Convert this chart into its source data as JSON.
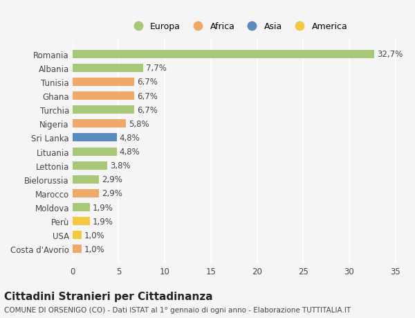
{
  "countries": [
    "Costa d'Avorio",
    "USA",
    "Perù",
    "Moldova",
    "Marocco",
    "Bielorussia",
    "Lettonia",
    "Lituania",
    "Sri Lanka",
    "Nigeria",
    "Turchia",
    "Ghana",
    "Tunisia",
    "Albania",
    "Romania"
  ],
  "values": [
    1.0,
    1.0,
    1.9,
    1.9,
    2.9,
    2.9,
    3.8,
    4.8,
    4.8,
    5.8,
    6.7,
    6.7,
    6.7,
    7.7,
    32.7
  ],
  "labels": [
    "1,0%",
    "1,0%",
    "1,9%",
    "1,9%",
    "2,9%",
    "2,9%",
    "3,8%",
    "4,8%",
    "4,8%",
    "5,8%",
    "6,7%",
    "6,7%",
    "6,7%",
    "7,7%",
    "32,7%"
  ],
  "colors": [
    "#f0a868",
    "#f5c842",
    "#f5c842",
    "#a8c878",
    "#f0a868",
    "#a8c878",
    "#a8c878",
    "#a8c878",
    "#5b8abf",
    "#f0a868",
    "#a8c878",
    "#f0a868",
    "#f0a868",
    "#a8c878",
    "#a8c878"
  ],
  "legend_names": [
    "Europa",
    "Africa",
    "Asia",
    "America"
  ],
  "legend_colors": [
    "#a8c878",
    "#f0a868",
    "#5b8abf",
    "#f5c842"
  ],
  "xlim": [
    0,
    36
  ],
  "xticks": [
    0,
    5,
    10,
    15,
    20,
    25,
    30,
    35
  ],
  "title": "Cittadini Stranieri per Cittadinanza",
  "subtitle": "COMUNE DI ORSENIGO (CO) - Dati ISTAT al 1° gennaio di ogni anno - Elaborazione TUTTITALIA.IT",
  "bg_color": "#f5f5f5",
  "bar_height": 0.6,
  "label_fontsize": 8.5,
  "title_fontsize": 11,
  "subtitle_fontsize": 7.5,
  "tick_fontsize": 8.5
}
